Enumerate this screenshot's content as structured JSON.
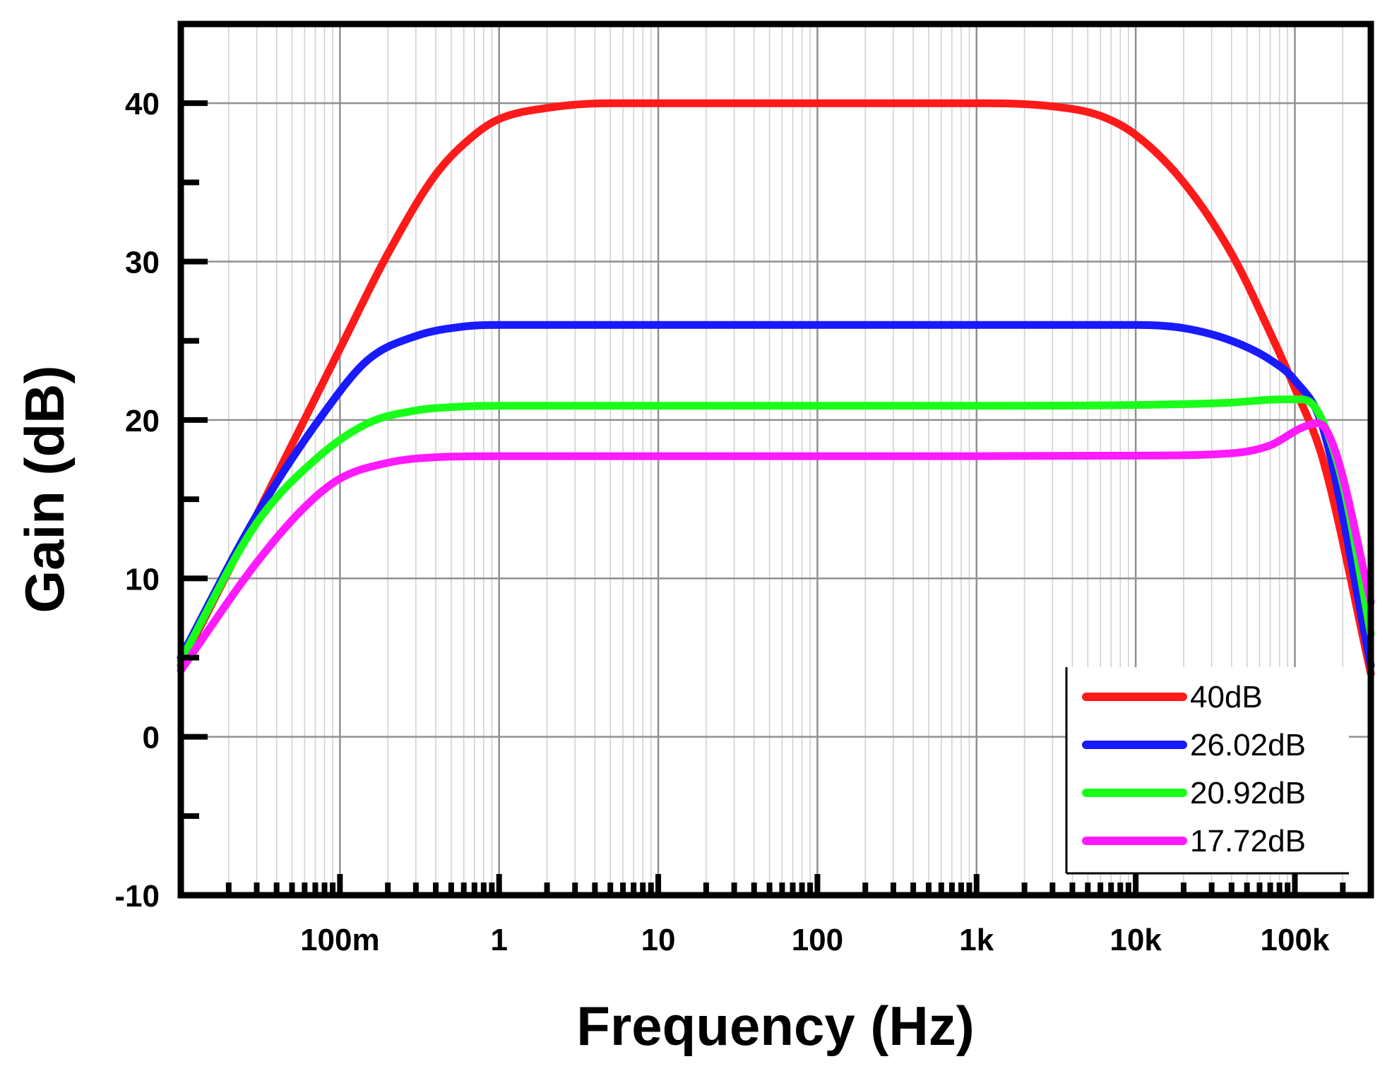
{
  "chart_data": {
    "type": "line",
    "xlabel": "Frequency (Hz)",
    "ylabel": "Gain (dB)",
    "x_scale": "log",
    "xlim": [
      0.01,
      300000
    ],
    "ylim": [
      -10,
      45
    ],
    "grid": true,
    "legend_position": "bottom-right",
    "x_ticks": [
      {
        "value": 0.1,
        "label": "100m"
      },
      {
        "value": 1,
        "label": "1"
      },
      {
        "value": 10,
        "label": "10"
      },
      {
        "value": 100,
        "label": "100"
      },
      {
        "value": 1000,
        "label": "1k"
      },
      {
        "value": 10000,
        "label": "10k"
      },
      {
        "value": 100000,
        "label": "100k"
      }
    ],
    "y_ticks": [
      {
        "value": 40,
        "label": "40"
      },
      {
        "value": 30,
        "label": "30"
      },
      {
        "value": 20,
        "label": "20"
      },
      {
        "value": 10,
        "label": "10"
      },
      {
        "value": 0,
        "label": "0"
      },
      {
        "value": -10,
        "label": "-10"
      }
    ],
    "series": [
      {
        "name": "40dB",
        "color": "#ff1a1a",
        "points": [
          [
            0.01,
            4.5
          ],
          [
            0.03,
            14.0
          ],
          [
            0.1,
            24.5
          ],
          [
            0.2,
            30.5
          ],
          [
            0.4,
            35.5
          ],
          [
            0.7,
            38.0
          ],
          [
            1,
            39.0
          ],
          [
            2,
            39.7
          ],
          [
            5,
            40.0
          ],
          [
            100,
            40.0
          ],
          [
            1000,
            40.0
          ],
          [
            3000,
            39.8
          ],
          [
            6000,
            39.2
          ],
          [
            10000,
            38.0
          ],
          [
            20000,
            35.0
          ],
          [
            40000,
            30.5
          ],
          [
            70000,
            25.5
          ],
          [
            100000,
            22.0
          ],
          [
            150000,
            17.5
          ],
          [
            300000,
            4.0
          ]
        ]
      },
      {
        "name": "26.02dB",
        "color": "#1a1aff",
        "points": [
          [
            0.01,
            5.0
          ],
          [
            0.03,
            14.0
          ],
          [
            0.08,
            20.5
          ],
          [
            0.15,
            23.8
          ],
          [
            0.3,
            25.3
          ],
          [
            0.6,
            25.9
          ],
          [
            1,
            26.0
          ],
          [
            100,
            26.0
          ],
          [
            10000,
            26.0
          ],
          [
            20000,
            25.8
          ],
          [
            40000,
            25.0
          ],
          [
            70000,
            23.8
          ],
          [
            100000,
            22.5
          ],
          [
            150000,
            19.5
          ],
          [
            300000,
            4.5
          ]
        ]
      },
      {
        "name": "20.92dB",
        "color": "#1aff1a",
        "points": [
          [
            0.01,
            4.8
          ],
          [
            0.03,
            13.5
          ],
          [
            0.07,
            17.5
          ],
          [
            0.15,
            19.8
          ],
          [
            0.3,
            20.6
          ],
          [
            0.6,
            20.85
          ],
          [
            1,
            20.9
          ],
          [
            1000,
            20.9
          ],
          [
            10000,
            20.95
          ],
          [
            40000,
            21.1
          ],
          [
            80000,
            21.3
          ],
          [
            110000,
            21.3
          ],
          [
            140000,
            20.5
          ],
          [
            200000,
            16.0
          ],
          [
            300000,
            6.5
          ]
        ]
      },
      {
        "name": "17.72dB",
        "color": "#ff1aff",
        "points": [
          [
            0.01,
            4.2
          ],
          [
            0.03,
            11.0
          ],
          [
            0.06,
            14.5
          ],
          [
            0.1,
            16.3
          ],
          [
            0.2,
            17.3
          ],
          [
            0.4,
            17.65
          ],
          [
            1,
            17.72
          ],
          [
            1000,
            17.72
          ],
          [
            10000,
            17.75
          ],
          [
            40000,
            17.9
          ],
          [
            70000,
            18.4
          ],
          [
            110000,
            19.5
          ],
          [
            140000,
            19.8
          ],
          [
            180000,
            18.0
          ],
          [
            300000,
            8.5
          ]
        ]
      }
    ]
  }
}
